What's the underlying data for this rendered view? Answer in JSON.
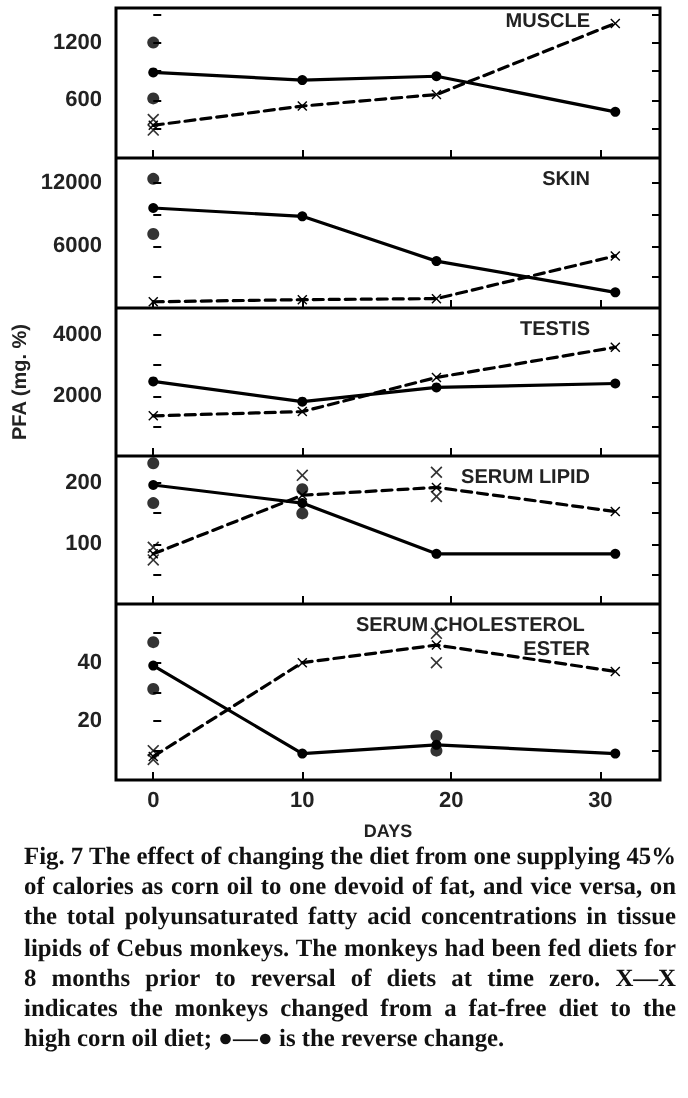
{
  "chart_data": [
    {
      "type": "line",
      "title": "MUSCLE",
      "xlim": [
        -2.5,
        34
      ],
      "xticks": [
        0,
        10,
        20,
        30
      ],
      "ylim": [
        0,
        1560
      ],
      "yticks": [
        {
          "value": 300,
          "label": null
        },
        600,
        {
          "value": 900,
          "label": null
        },
        1200,
        {
          "value": 1500,
          "label": null
        }
      ],
      "tick_labels": "y",
      "grid": false,
      "series": [
        {
          "type": "line",
          "color": "#000000",
          "line_style": "solid",
          "marker": "circle",
          "x": [
            0,
            10,
            19,
            31
          ],
          "values": [
            890,
            810,
            850,
            480
          ]
        },
        {
          "type": "line",
          "color": "#000000",
          "line_style": "dashed",
          "marker": "cross",
          "x": [
            0,
            10,
            19,
            31
          ],
          "values": [
            340,
            540,
            660,
            1400
          ]
        },
        {
          "type": "scatter",
          "color": "#000000",
          "marker": "circle",
          "x": [
            0,
            0
          ],
          "values": [
            1200,
            620
          ]
        },
        {
          "type": "scatter",
          "color": "#000000",
          "marker": "cross",
          "x": [
            0,
            0
          ],
          "values": [
            400,
            290
          ]
        }
      ]
    },
    {
      "type": "line",
      "title": "SKIN",
      "xlim": [
        -2.5,
        34
      ],
      "xticks": [
        0,
        10,
        20,
        30
      ],
      "ylim": [
        0,
        14400
      ],
      "yticks": [
        {
          "value": 3000,
          "label": null
        },
        6000,
        {
          "value": 9000,
          "label": null
        },
        12000
      ],
      "tick_labels": "y",
      "grid": false,
      "series": [
        {
          "type": "line",
          "color": "#000000",
          "line_style": "solid",
          "marker": "circle",
          "x": [
            0,
            10,
            19,
            31
          ],
          "values": [
            9600,
            8800,
            4500,
            1500
          ]
        },
        {
          "type": "line",
          "color": "#000000",
          "line_style": "dashed",
          "marker": "cross",
          "x": [
            0,
            10,
            19,
            31
          ],
          "values": [
            600,
            800,
            900,
            5000
          ]
        },
        {
          "type": "scatter",
          "color": "#000000",
          "marker": "circle",
          "x": [
            0,
            0
          ],
          "values": [
            12400,
            7100
          ]
        }
      ]
    },
    {
      "type": "line",
      "title": "TESTIS",
      "ylabel": "PFA (mg. %)",
      "xlim": [
        -2.5,
        34
      ],
      "xticks": [
        0,
        10,
        20,
        30
      ],
      "ylim": [
        0,
        4900
      ],
      "yticks": [
        {
          "value": 1000,
          "label": null
        },
        2000,
        {
          "value": 3000,
          "label": null
        },
        4000
      ],
      "tick_labels": "y",
      "grid": false,
      "series": [
        {
          "type": "line",
          "color": "#000000",
          "line_style": "solid",
          "marker": "circle",
          "x": [
            0,
            10,
            19,
            31
          ],
          "values": [
            2470,
            1800,
            2270,
            2400
          ]
        },
        {
          "type": "line",
          "color": "#000000",
          "line_style": "dashed",
          "marker": "cross",
          "x": [
            0,
            10,
            19,
            31
          ],
          "values": [
            1330,
            1470,
            2600,
            3600
          ]
        }
      ]
    },
    {
      "type": "line",
      "title": "SERUM LIPID",
      "xlim": [
        -2.5,
        34
      ],
      "xticks": [
        0,
        10,
        20,
        30
      ],
      "ylim": [
        0,
        245
      ],
      "yticks": [
        {
          "value": 50,
          "label": null
        },
        100,
        {
          "value": 150,
          "label": null
        },
        200
      ],
      "tick_labels": "y",
      "grid": false,
      "series": [
        {
          "type": "line",
          "color": "#000000",
          "line_style": "solid",
          "marker": "circle",
          "x": [
            0,
            10,
            19,
            31
          ],
          "values": [
            197,
            167,
            83,
            83
          ]
        },
        {
          "type": "line",
          "color": "#000000",
          "line_style": "dashed",
          "marker": "cross",
          "x": [
            0,
            10,
            19,
            31
          ],
          "values": [
            83,
            180,
            193,
            153
          ]
        },
        {
          "type": "scatter",
          "color": "#000000",
          "marker": "circle",
          "x": [
            0,
            0,
            10,
            10
          ],
          "values": [
            233,
            167,
            190,
            150
          ]
        },
        {
          "type": "scatter",
          "color": "#000000",
          "marker": "cross",
          "x": [
            0,
            0,
            10,
            19,
            19
          ],
          "values": [
            94,
            73,
            213,
            218,
            178
          ]
        }
      ]
    },
    {
      "type": "line",
      "title": "SERUM CHOLESTEROL ESTER",
      "xlabel": "DAYS",
      "xlim": [
        -2.5,
        34
      ],
      "xticks": [
        0,
        10,
        20,
        30
      ],
      "ylim": [
        0,
        60
      ],
      "yticks": [
        {
          "value": 10,
          "label": null
        },
        20,
        {
          "value": 30,
          "label": null
        },
        40,
        {
          "value": 50,
          "label": null
        }
      ],
      "grid": false,
      "annotations": [
        "Fig. 7  The effect of changing the diet from one supplying 45% of calories as corn oil to one devoid of fat, and vice versa, on the total polyunsaturated fatty acid concentrations in tissue lipids of Cebus monkeys. The monkeys had been fed diets for 8 months prior to reversal of diets at time zero. X—X indicates the monkeys changed from a fat-free diet to the high corn oil diet; ●—● is the reverse change."
      ],
      "series": [
        {
          "type": "line",
          "color": "#000000",
          "line_style": "solid",
          "marker": "circle",
          "x": [
            0,
            10,
            19,
            31
          ],
          "values": [
            39,
            9,
            12,
            9
          ]
        },
        {
          "type": "line",
          "color": "#000000",
          "line_style": "dashed",
          "marker": "cross",
          "x": [
            0,
            10,
            19,
            31
          ],
          "values": [
            8,
            40,
            46,
            37
          ]
        },
        {
          "type": "scatter",
          "color": "#000000",
          "marker": "circle",
          "x": [
            0,
            0,
            19,
            19
          ],
          "values": [
            47,
            31,
            15,
            10
          ]
        },
        {
          "type": "scatter",
          "color": "#000000",
          "marker": "cross",
          "x": [
            0,
            0,
            19,
            19
          ],
          "values": [
            10,
            7,
            50,
            40
          ]
        }
      ]
    }
  ]
}
